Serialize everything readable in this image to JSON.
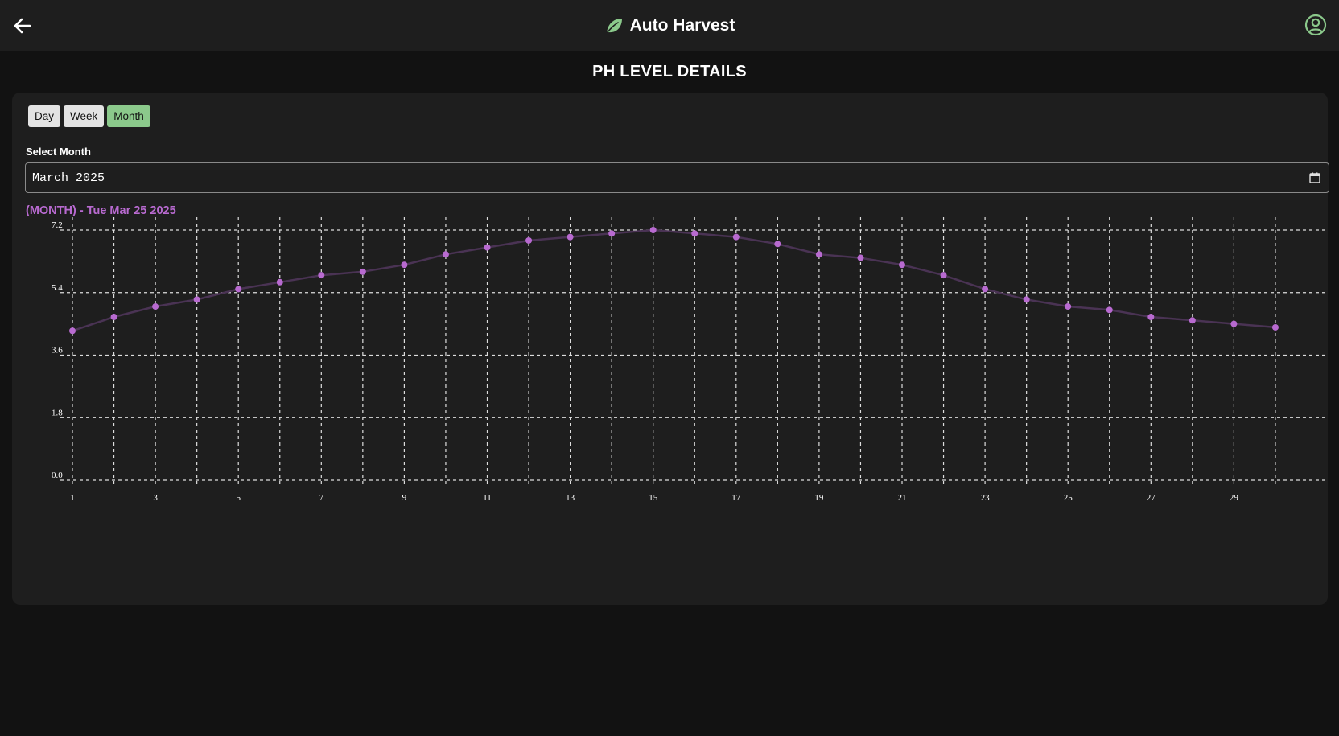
{
  "header": {
    "back_icon": "arrow-left-icon",
    "brand_icon": "leaf-icon",
    "title": "Auto Harvest",
    "profile_icon": "user-circle-icon",
    "accent_color": "#8bc98b"
  },
  "page": {
    "title": "PH LEVEL DETAILS"
  },
  "range": {
    "buttons": [
      {
        "label": "Day"
      },
      {
        "label": "Week"
      },
      {
        "label": "Month"
      }
    ],
    "active": "Month"
  },
  "month_select": {
    "label": "Select Month",
    "value": "March 2025",
    "icon": "calendar-icon"
  },
  "chart_data": {
    "type": "line",
    "title": "(MONTH) - Tue Mar 25 2025",
    "x": [
      1,
      2,
      3,
      4,
      5,
      6,
      7,
      8,
      9,
      10,
      11,
      12,
      13,
      14,
      15,
      16,
      17,
      18,
      19,
      20,
      21,
      22,
      23,
      24,
      25,
      26,
      27,
      28,
      29,
      30
    ],
    "x_tick_labels": [
      "1",
      "3",
      "5",
      "7",
      "9",
      "11",
      "13",
      "15",
      "17",
      "19",
      "21",
      "23",
      "25",
      "27",
      "29"
    ],
    "y_tick_labels": [
      "0.0",
      "1.8",
      "3.6",
      "5.4",
      "7.2"
    ],
    "ylim": [
      0,
      7.2
    ],
    "series": [
      {
        "values": [
          4.3,
          4.7,
          5.0,
          5.2,
          5.5,
          5.7,
          5.9,
          6.0,
          6.2,
          6.5,
          6.7,
          6.9,
          7.0,
          7.1,
          7.2,
          7.1,
          7.0,
          6.8,
          6.5,
          6.4,
          6.2,
          5.9,
          5.5,
          5.2,
          5.0,
          4.9,
          4.7,
          4.6,
          4.5,
          4.4
        ],
        "color": "#b86ad0",
        "line_color": "#4a3354"
      }
    ],
    "grid": true,
    "legend": "none"
  }
}
